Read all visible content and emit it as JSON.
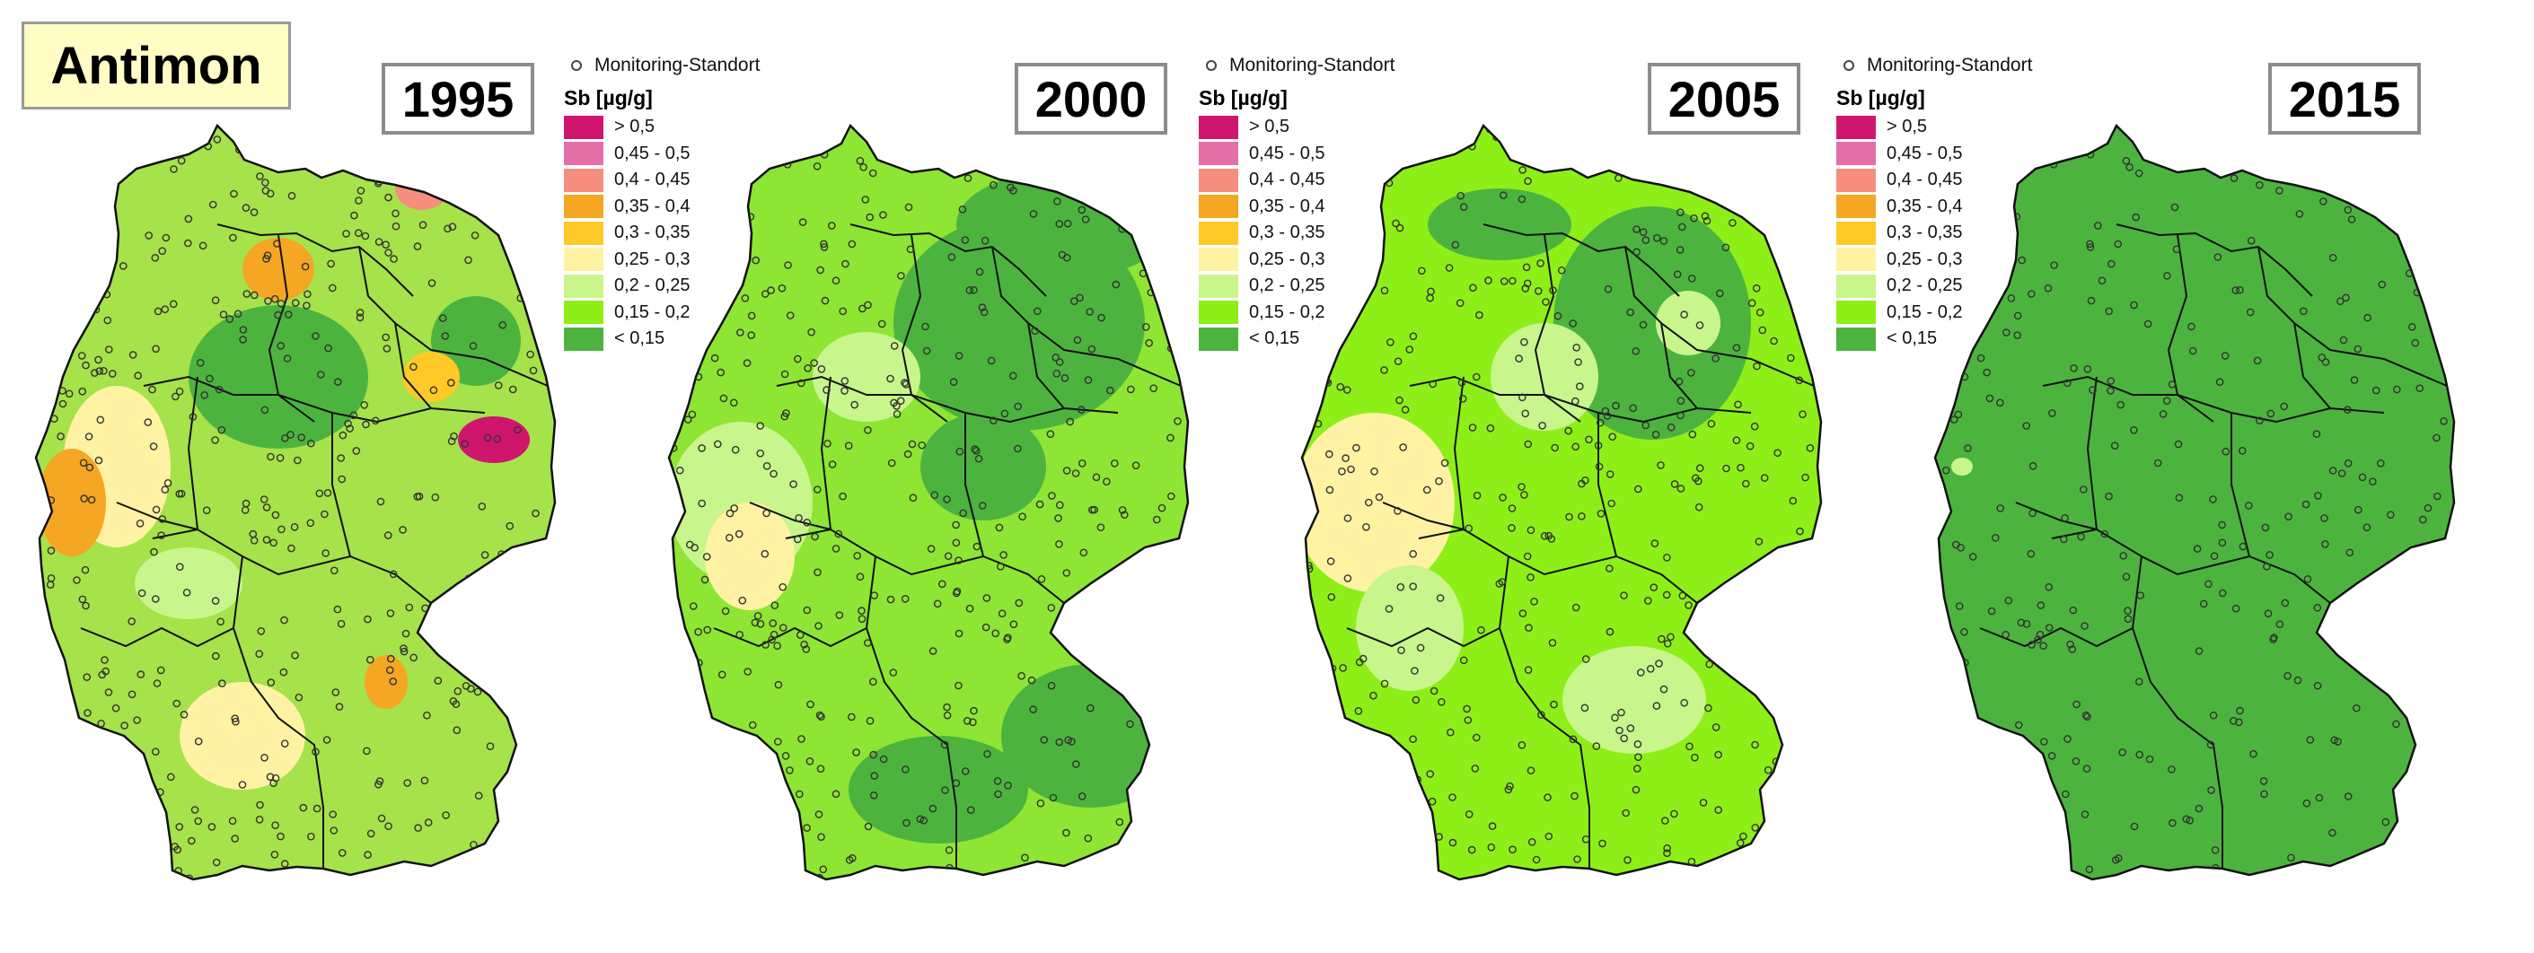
{
  "title": "Antimon",
  "legend": {
    "site_label": "Monitoring-Standort",
    "unit_label": "Sb [µg/g]",
    "classes": [
      {
        "label": "> 0,5",
        "color": "#d0156f"
      },
      {
        "label": "0,45 - 0,5",
        "color": "#e46fa6"
      },
      {
        "label": "0,4 - 0,45",
        "color": "#f58e7f"
      },
      {
        "label": "0,35 - 0,4",
        "color": "#f5a623"
      },
      {
        "label": "0,3 - 0,35",
        "color": "#ffc928"
      },
      {
        "label": "0,25 - 0,3",
        "color": "#fff2a2"
      },
      {
        "label": "0,2 - 0,25",
        "color": "#c8f58c"
      },
      {
        "label": "0,15 - 0,2",
        "color": "#8eef18"
      },
      {
        "label": "< 0,15",
        "color": "#4cb43e"
      }
    ]
  },
  "maps": [
    {
      "year": "1995",
      "base_color": "#a6e24a",
      "has_legend": true
    },
    {
      "year": "2000",
      "base_color": "#8ee533",
      "has_legend": true
    },
    {
      "year": "2005",
      "base_color": "#8eef18",
      "has_legend": true
    },
    {
      "year": "2015",
      "base_color": "#4cb43e",
      "has_legend": false
    }
  ]
}
